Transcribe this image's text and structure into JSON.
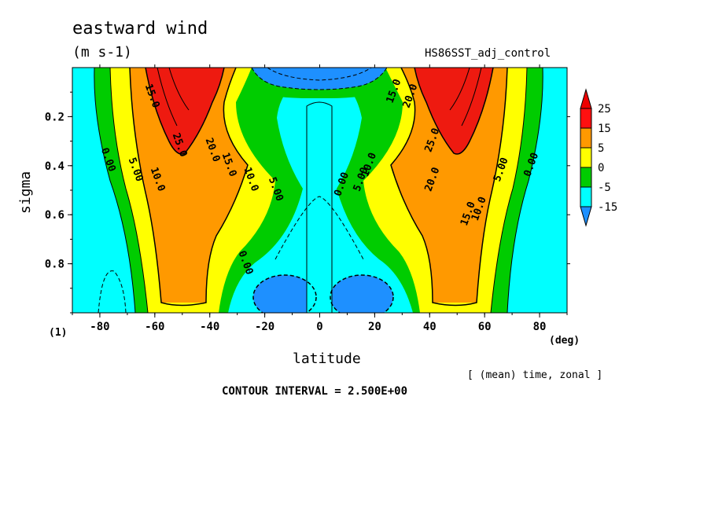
{
  "header": {
    "title": "eastward wind",
    "units": "(m s-1)",
    "run_name": "HS86SST_adj_control",
    "panel_index": "(1)",
    "averaging_note": "[ (mean) time, zonal ]",
    "contour_interval": "CONTOUR INTERVAL = 2.500E+00"
  },
  "chart_data": {
    "type": "heatmap",
    "title": "eastward wind",
    "units": "(m s-1)",
    "xlabel": "latitude",
    "xunit": "(deg)",
    "ylabel": "sigma",
    "xlim": [
      -90,
      90
    ],
    "ylim": [
      0,
      1
    ],
    "y_inverted": true,
    "x_ticks": [
      -80,
      -60,
      -40,
      -20,
      0,
      20,
      40,
      60,
      80
    ],
    "y_ticks": [
      0.2,
      0.4,
      0.6,
      0.8
    ],
    "colorbar": {
      "labels": [
        "25",
        "15",
        "5",
        "0",
        "-5",
        "-15"
      ],
      "levels": [
        -15,
        -5,
        0,
        5,
        15,
        25
      ],
      "colors": [
        "#1e90ff",
        "#00ffff",
        "#00cc00",
        "#ffff00",
        "#ff9900",
        "#ff1010",
        "#ee0000"
      ]
    },
    "contour_labels": [
      {
        "text": "15.0",
        "lat": -62,
        "sigma": 0.12
      },
      {
        "text": "25.0",
        "lat": -52,
        "sigma": 0.32
      },
      {
        "text": "20.0",
        "lat": -40,
        "sigma": 0.34
      },
      {
        "text": "15.0",
        "lat": -34,
        "sigma": 0.4
      },
      {
        "text": "10.0",
        "lat": -26,
        "sigma": 0.46
      },
      {
        "text": "5.00",
        "lat": -17,
        "sigma": 0.5
      },
      {
        "text": "10.0",
        "lat": -60,
        "sigma": 0.46
      },
      {
        "text": "5.00",
        "lat": -68,
        "sigma": 0.42
      },
      {
        "text": "0.00",
        "lat": -78,
        "sigma": 0.38
      },
      {
        "text": "0.00",
        "lat": -28,
        "sigma": 0.8
      },
      {
        "text": "0.00",
        "lat": 9,
        "sigma": 0.48
      },
      {
        "text": "5.00",
        "lat": 16,
        "sigma": 0.46
      },
      {
        "text": "10.0",
        "lat": 19,
        "sigma": 0.4
      },
      {
        "text": "15.0",
        "lat": 28,
        "sigma": 0.1
      },
      {
        "text": "20.0",
        "lat": 34,
        "sigma": 0.12
      },
      {
        "text": "25.0",
        "lat": 42,
        "sigma": 0.3
      },
      {
        "text": "20.0",
        "lat": 42,
        "sigma": 0.46
      },
      {
        "text": "15.0",
        "lat": 55,
        "sigma": 0.6
      },
      {
        "text": "10.0",
        "lat": 59,
        "sigma": 0.58
      },
      {
        "text": "5.00",
        "lat": 67,
        "sigma": 0.42
      },
      {
        "text": "0.00",
        "lat": 78,
        "sigma": 0.4
      }
    ],
    "grid": false,
    "legend": "right colorbar"
  }
}
